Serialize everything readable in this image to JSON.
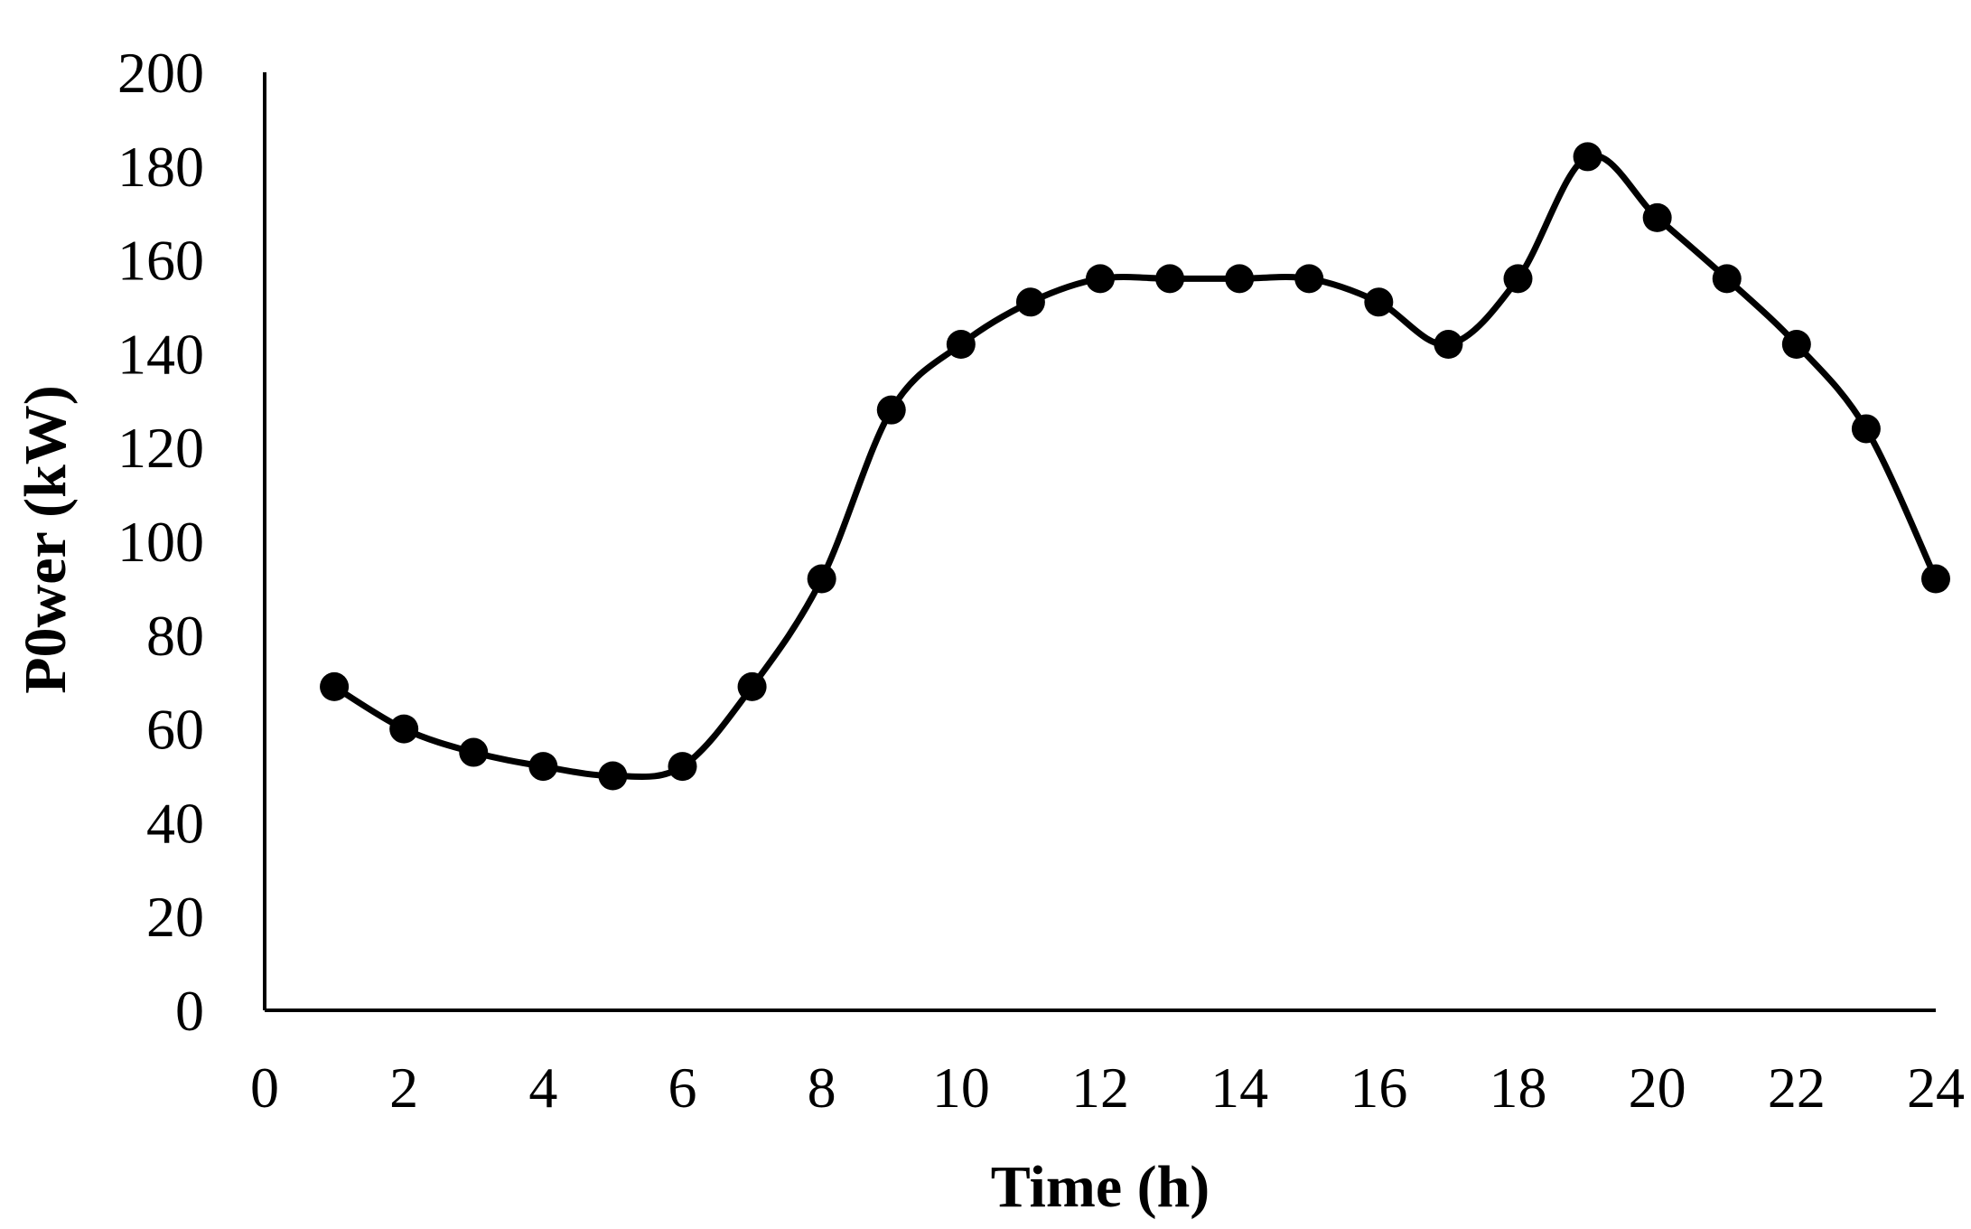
{
  "chart_data": {
    "type": "line",
    "title": "",
    "xlabel": "Time (h)",
    "ylabel": "P0wer (kW)",
    "xlim": [
      0,
      24
    ],
    "ylim": [
      0,
      200
    ],
    "xticks": [
      "0",
      "2",
      "4",
      "6",
      "8",
      "10",
      "12",
      "14",
      "16",
      "18",
      "20",
      "22",
      "24"
    ],
    "yticks": [
      "0",
      "20",
      "40",
      "60",
      "80",
      "100",
      "120",
      "140",
      "160",
      "180",
      "200"
    ],
    "grid": false,
    "legend": "none",
    "smooth": true,
    "marker": "circle",
    "color": "#000000",
    "series": [
      {
        "x": [
          1,
          2,
          3,
          4,
          5,
          6,
          7,
          8,
          9,
          10,
          11,
          12,
          13,
          14,
          15,
          16,
          17,
          18,
          19,
          20,
          21,
          22,
          23,
          24
        ],
        "values": [
          69,
          60,
          55,
          52,
          50,
          52,
          69,
          92,
          128,
          142,
          151,
          156,
          156,
          156,
          156,
          151,
          142,
          156,
          182,
          169,
          156,
          142,
          124,
          92
        ]
      }
    ]
  }
}
